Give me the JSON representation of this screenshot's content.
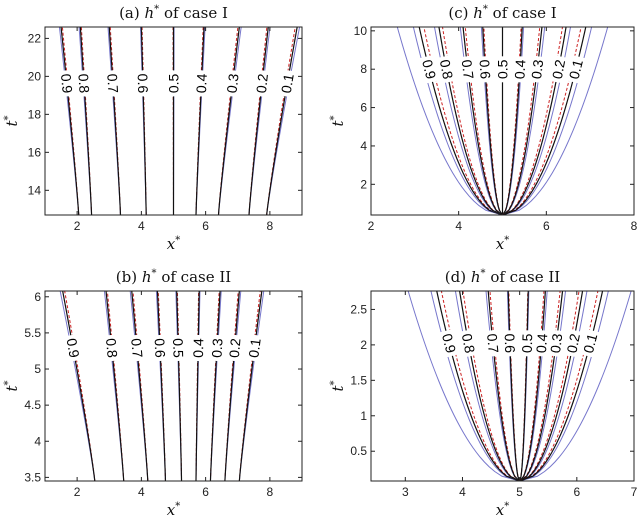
{
  "chart_data": [
    {
      "type": "line",
      "panel": "a",
      "title_prefix": "(a) ",
      "title_var": "h",
      "title_sup": "*",
      "title_suffix": " of case I",
      "xlabel": "x",
      "ylabel": "t",
      "label_sup": "*",
      "xlim": [
        1,
        9
      ],
      "ylim": [
        12.7,
        22.6
      ],
      "xticks": [
        2,
        4,
        6,
        8
      ],
      "yticks": [
        14,
        16,
        18,
        20,
        22
      ],
      "contour_levels": [
        "0.9",
        "0.8",
        "0.7",
        "0.6",
        "0.5",
        "0.4",
        "0.3",
        "0.2",
        "0.1"
      ],
      "label_y": 19.7,
      "family": {
        "kind": "diverging",
        "ymin": 12.7,
        "ymax": 22.6,
        "start": [
          2.05,
          2.45,
          3.35,
          4.15,
          5.0,
          5.7,
          6.4,
          7.35,
          7.9
        ],
        "end": [
          1.5,
          2.1,
          3.0,
          4.0,
          5.0,
          5.95,
          7.05,
          7.95,
          8.85
        ]
      },
      "series": [
        {
          "style": "black solid",
          "color": "#111111"
        },
        {
          "style": "red dashed",
          "color": "#cc2222"
        },
        {
          "style": "blue solid",
          "color": "#7777cc"
        }
      ]
    },
    {
      "type": "line",
      "panel": "c",
      "title_prefix": "(c) ",
      "title_var": "h",
      "title_sup": "*",
      "title_suffix": " of case I",
      "xlabel": "x",
      "ylabel": "t",
      "label_sup": "*",
      "xlim": [
        2,
        8
      ],
      "ylim": [
        0.4,
        10.2
      ],
      "xticks": [
        2,
        4,
        6,
        8
      ],
      "yticks": [
        2,
        4,
        6,
        8,
        10
      ],
      "contour_levels": [
        "0.9",
        "0.8",
        "0.7",
        "0.6",
        "0.5",
        "0.4",
        "0.3",
        "0.2",
        "0.1"
      ],
      "label_y": 7.9,
      "family": {
        "kind": "parabolic",
        "center": 5.0,
        "ymin": 0.4,
        "ymax": 10.2,
        "top": [
          3.1,
          3.55,
          4.1,
          4.55,
          5.0,
          5.45,
          5.9,
          6.45,
          6.9
        ],
        "outer_left": 2.6,
        "outer_right": 7.4
      },
      "series": [
        {
          "style": "black solid",
          "color": "#111111"
        },
        {
          "style": "red dashed",
          "color": "#cc2222"
        },
        {
          "style": "blue solid",
          "color": "#7777cc"
        }
      ]
    },
    {
      "type": "line",
      "panel": "b",
      "title_prefix": "(b) ",
      "title_var": "h",
      "title_sup": "*",
      "title_suffix": " of case II",
      "xlabel": "x",
      "ylabel": "t",
      "label_sup": "*",
      "xlim": [
        1,
        9
      ],
      "ylim": [
        3.45,
        6.08
      ],
      "xticks": [
        2,
        4,
        6,
        8
      ],
      "yticks": [
        3.5,
        4,
        4.5,
        5,
        5.5,
        6
      ],
      "contour_levels": [
        "0.9",
        "0.8",
        "0.7",
        "0.6",
        "0.5",
        "0.4",
        "0.3",
        "0.2",
        "0.1"
      ],
      "label_y": 5.3,
      "family": {
        "kind": "diverging",
        "ymin": 3.45,
        "ymax": 6.08,
        "start": [
          2.55,
          3.45,
          4.2,
          4.75,
          5.25,
          5.7,
          6.15,
          6.6,
          7.05
        ],
        "end": [
          1.55,
          2.9,
          3.7,
          4.5,
          5.1,
          5.8,
          6.45,
          7.05,
          7.75
        ]
      },
      "series": [
        {
          "style": "black solid",
          "color": "#111111"
        },
        {
          "style": "red dashed",
          "color": "#cc2222"
        },
        {
          "style": "blue solid",
          "color": "#7777cc"
        }
      ]
    },
    {
      "type": "line",
      "panel": "d",
      "title_prefix": "(d) ",
      "title_var": "h",
      "title_sup": "*",
      "title_suffix": " of case II",
      "xlabel": "x",
      "ylabel": "t",
      "label_sup": "*",
      "xlim": [
        2.4,
        7.0
      ],
      "ylim": [
        0.08,
        2.76
      ],
      "xticks": [
        3,
        4,
        5,
        6,
        7
      ],
      "yticks": [
        0.5,
        1,
        1.5,
        2,
        2.5
      ],
      "contour_levels": [
        "0.9",
        "0.8",
        "0.7",
        "0.6",
        "0.5",
        "0.4",
        "0.3",
        "0.2",
        "0.1"
      ],
      "label_y": 2.05,
      "family": {
        "kind": "parabolic",
        "center": 5.0,
        "ymin": 0.08,
        "ymax": 2.76,
        "top": [
          3.55,
          3.95,
          4.45,
          4.8,
          5.15,
          5.45,
          5.75,
          6.1,
          6.45
        ],
        "outer_left": 3.05,
        "outer_right": 6.95
      },
      "series": [
        {
          "style": "black solid",
          "color": "#111111"
        },
        {
          "style": "red dashed",
          "color": "#cc2222"
        },
        {
          "style": "blue solid",
          "color": "#7777cc"
        }
      ]
    }
  ]
}
